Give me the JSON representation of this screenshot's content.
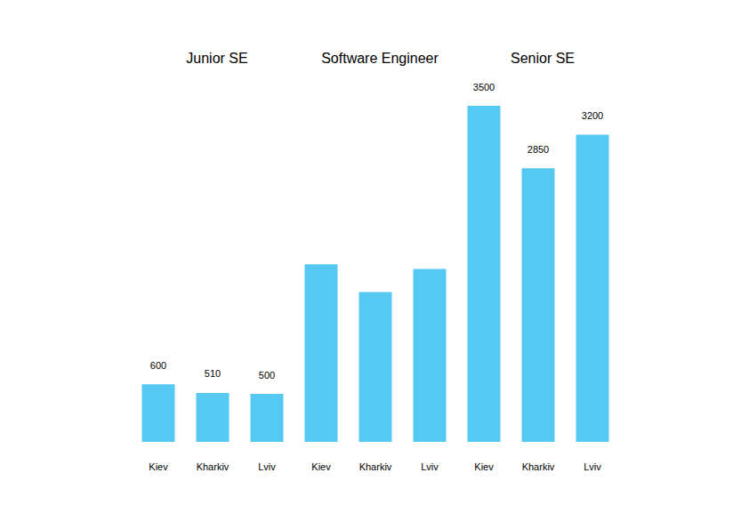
{
  "chart_data": [
    {
      "type": "bar",
      "title": "Junior SE",
      "categories": [
        "Kiev",
        "Kharkiv",
        "Lviv"
      ],
      "values": [
        600,
        510,
        500
      ],
      "color": "#56c9f2",
      "ylim": [
        0,
        3500
      ],
      "data_labels": true,
      "tick_labels": "x",
      "grid": false
    },
    {
      "type": "bar",
      "title": "Software Engineer",
      "categories": [
        "Kiev",
        "Kharkiv",
        "Lviv"
      ],
      "values": [
        1850,
        1560,
        1800
      ],
      "color": "#56c9f2",
      "ylim": [
        0,
        3500
      ],
      "data_labels": false,
      "tick_labels": "x",
      "grid": false
    },
    {
      "type": "bar",
      "title": "Senior SE",
      "categories": [
        "Kiev",
        "Kharkiv",
        "Lviv"
      ],
      "values": [
        3500,
        2850,
        3200
      ],
      "color": "#56c9f2",
      "ylim": [
        0,
        3500
      ],
      "data_labels": true,
      "tick_labels": "x",
      "grid": false
    }
  ]
}
